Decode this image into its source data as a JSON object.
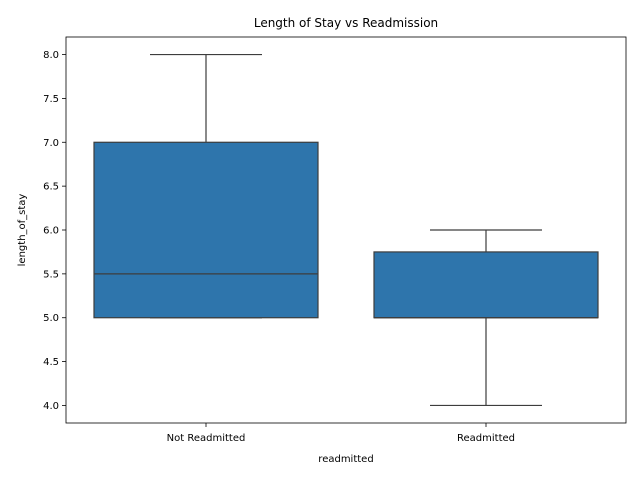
{
  "chart_data": {
    "type": "box",
    "title": "Length of Stay vs Readmission",
    "xlabel": "readmitted",
    "ylabel": "length_of_stay",
    "categories": [
      "Not Readmitted",
      "Readmitted"
    ],
    "boxes": [
      {
        "category": "Not Readmitted",
        "whisker_low": 5.0,
        "q1": 5.0,
        "median": 5.5,
        "q3": 7.0,
        "whisker_high": 8.0
      },
      {
        "category": "Readmitted",
        "whisker_low": 4.0,
        "q1": 5.0,
        "median": 5.0,
        "q3": 5.75,
        "whisker_high": 6.0
      }
    ],
    "yticks": [
      4.0,
      4.5,
      5.0,
      5.5,
      6.0,
      6.5,
      7.0,
      7.5,
      8.0
    ],
    "ytick_labels": [
      "4.0",
      "4.5",
      "5.0",
      "5.5",
      "6.0",
      "6.5",
      "7.0",
      "7.5",
      "8.0"
    ],
    "ylim": [
      3.8,
      8.2
    ],
    "grid": false,
    "colors": {
      "box_fill": "#2e75ac",
      "line": "#3d3d3d"
    }
  }
}
